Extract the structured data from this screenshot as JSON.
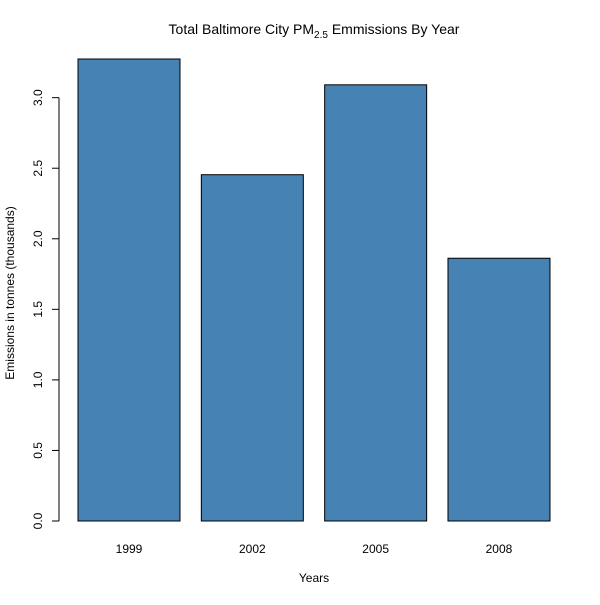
{
  "chart_data": {
    "type": "bar",
    "title": {
      "before": "Total Baltimore City PM",
      "subscript": "2.5",
      "after": " Emmissions By Year"
    },
    "xlabel": "Years",
    "ylabel": "Emissions in tonnes (thousands)",
    "categories": [
      "1999",
      "2002",
      "2005",
      "2008"
    ],
    "values": [
      3.274,
      2.454,
      3.091,
      1.862
    ],
    "yticks": [
      0.0,
      0.5,
      1.0,
      1.5,
      2.0,
      2.5,
      3.0
    ],
    "ytick_labels": [
      "0.0",
      "0.5",
      "1.0",
      "1.5",
      "2.0",
      "2.5",
      "3.0"
    ],
    "ylim": [
      0,
      3.274
    ],
    "grid": false,
    "legend": "none",
    "bar_color": "#4682b4",
    "bar_border_color": "#000000"
  }
}
